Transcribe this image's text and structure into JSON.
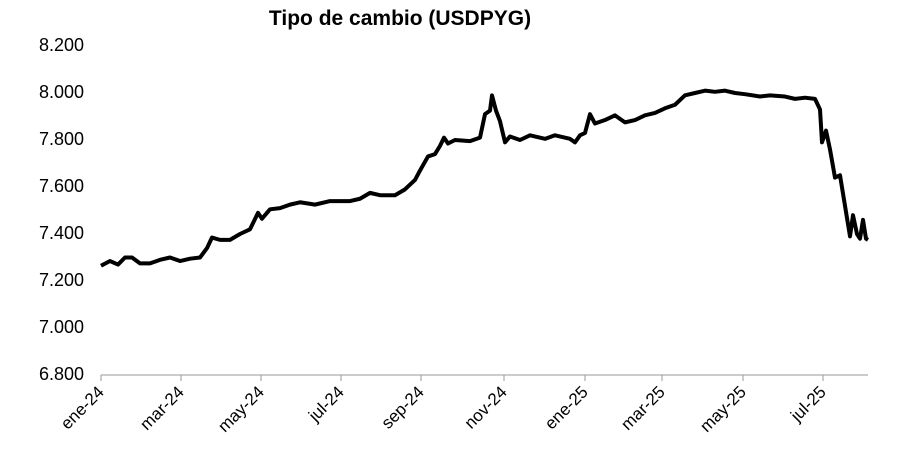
{
  "chart_data": {
    "type": "line",
    "title": "Tipo de cambio (USDPYG)",
    "x": [
      0,
      0.225,
      0.425,
      0.6,
      0.775,
      0.975,
      1.225,
      1.475,
      1.725,
      1.975,
      2.225,
      2.475,
      2.65,
      2.775,
      2.975,
      3.225,
      3.475,
      3.725,
      3.925,
      4.025,
      4.225,
      4.475,
      4.725,
      4.975,
      5.35,
      5.725,
      6.225,
      6.475,
      6.725,
      6.975,
      7.35,
      7.6,
      7.85,
      7.975,
      8.175,
      8.35,
      8.475,
      8.575,
      8.675,
      8.85,
      9.225,
      9.475,
      9.6,
      9.725,
      9.775,
      9.875,
      9.975,
      10.1,
      10.225,
      10.475,
      10.725,
      11.1,
      11.35,
      11.725,
      11.85,
      11.975,
      12.1,
      12.225,
      12.35,
      12.6,
      12.85,
      13.1,
      13.35,
      13.6,
      13.85,
      14.1,
      14.35,
      14.6,
      14.85,
      15.1,
      15.35,
      15.6,
      15.85,
      16.1,
      16.475,
      16.725,
      17.1,
      17.35,
      17.6,
      17.85,
      17.975,
      18.025,
      18.125,
      18.225,
      18.35,
      18.475,
      18.6,
      18.725,
      18.8,
      18.9,
      18.975,
      19.05,
      19.125,
      19.175
    ],
    "series": [
      {
        "color": "#000000",
        "values": [
          7265,
          7285,
          7270,
          7300,
          7300,
          7275,
          7275,
          7290,
          7300,
          7285,
          7295,
          7300,
          7340,
          7385,
          7375,
          7375,
          7400,
          7420,
          7490,
          7465,
          7505,
          7510,
          7525,
          7535,
          7525,
          7540,
          7540,
          7550,
          7575,
          7565,
          7565,
          7590,
          7630,
          7670,
          7730,
          7740,
          7775,
          7810,
          7785,
          7800,
          7795,
          7810,
          7910,
          7925,
          7990,
          7925,
          7880,
          7790,
          7815,
          7800,
          7820,
          7805,
          7820,
          7805,
          7790,
          7820,
          7830,
          7910,
          7870,
          7885,
          7905,
          7875,
          7885,
          7905,
          7915,
          7935,
          7950,
          7990,
          8000,
          8010,
          8005,
          8010,
          8000,
          7995,
          7985,
          7990,
          7985,
          7975,
          7980,
          7975,
          7930,
          7790,
          7840,
          7760,
          7640,
          7650,
          7520,
          7390,
          7480,
          7400,
          7380,
          7460,
          7380,
          7375
        ]
      }
    ],
    "xlim": [
      0,
      19.175
    ],
    "xticks": [
      {
        "value": 0,
        "label": "ene-24"
      },
      {
        "value": 2,
        "label": "mar-24"
      },
      {
        "value": 4,
        "label": "may-24"
      },
      {
        "value": 6,
        "label": "jul-24"
      },
      {
        "value": 8,
        "label": "sep-24"
      },
      {
        "value": 10.075,
        "label": "nov-24"
      },
      {
        "value": 12.1,
        "label": "ene-25"
      },
      {
        "value": 14.025,
        "label": "mar-25"
      },
      {
        "value": 16.05,
        "label": "may-25"
      },
      {
        "value": 18.05,
        "label": "jul-25"
      }
    ],
    "ylim": [
      6800,
      8200
    ],
    "yticks": [
      {
        "value": 6800,
        "label": "6.800"
      },
      {
        "value": 7000,
        "label": "7.000"
      },
      {
        "value": 7200,
        "label": "7.200"
      },
      {
        "value": 7400,
        "label": "7.400"
      },
      {
        "value": 7600,
        "label": "7.600"
      },
      {
        "value": 7800,
        "label": "7.800"
      },
      {
        "value": 8000,
        "label": "8.000"
      },
      {
        "value": 8200,
        "label": "8.200"
      }
    ],
    "grid": false
  }
}
